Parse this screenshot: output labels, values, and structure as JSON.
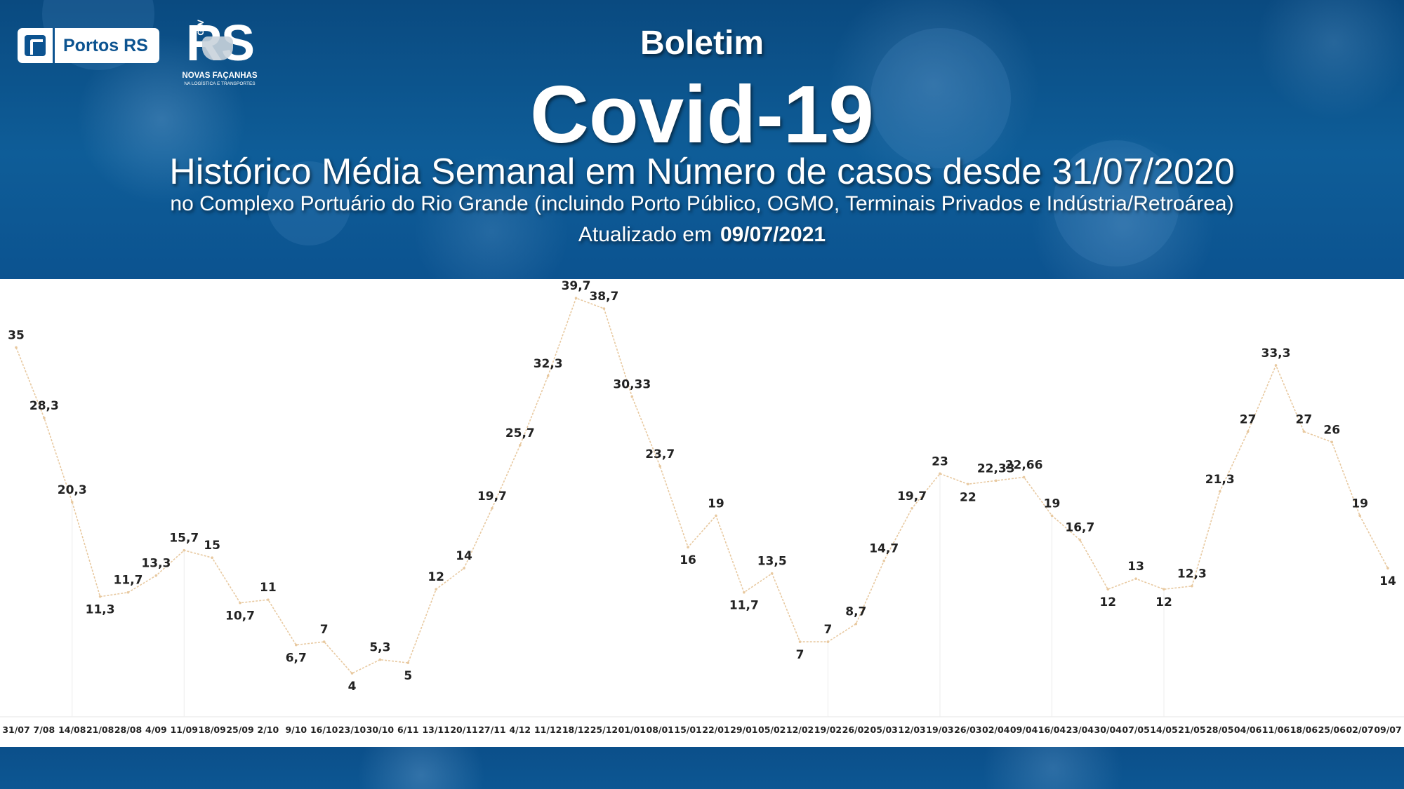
{
  "header": {
    "logo_portos_text": "Portos RS",
    "logo_rs_text": "RS",
    "logo_rs_gov": "GOV",
    "logo_rs_sub1": "NOVAS FAÇANHAS",
    "logo_rs_sub2": "NA LOGÍSTICA E TRANSPORTES",
    "title_small": "Boletim",
    "title_big": "Covid-19",
    "subtitle": "Histórico Média Semanal em Número de casos desde 31/07/2020",
    "description": "no Complexo Portuário do Rio Grande (incluindo Porto Público, OGMO, Terminais Privados e Indústria/Retroárea)",
    "updated_label": "Atualizado em",
    "updated_date": "09/07/2021"
  },
  "colors": {
    "banner": "#0c5390",
    "line": "#e8c9a0",
    "labels": "#222222"
  },
  "chart_data": {
    "type": "line",
    "title": "",
    "xlabel": "",
    "ylabel": "",
    "ylim": [
      0,
      42
    ],
    "grid": false,
    "legend": "none",
    "categories": [
      "31/07",
      "7/08",
      "14/08",
      "21/08",
      "28/08",
      "4/09",
      "11/09",
      "18/09",
      "25/09",
      "2/10",
      "9/10",
      "16/10",
      "23/10",
      "30/10",
      "6/11",
      "13/11",
      "20/11",
      "27/11",
      "4/12",
      "11/12",
      "18/12",
      "25/12",
      "01/01",
      "08/01",
      "15/01",
      "22/01",
      "29/01",
      "05/02",
      "12/02",
      "19/02",
      "26/02",
      "05/03",
      "12/03",
      "19/03",
      "26/03",
      "02/04",
      "09/04",
      "16/04",
      "23/04",
      "30/04",
      "07/05",
      "14/05",
      "21/05",
      "28/05",
      "04/06",
      "11/06",
      "18/06",
      "25/06",
      "02/07",
      "09/07"
    ],
    "labels": [
      "35",
      "28,3",
      "20,3",
      "11,3",
      "11,7",
      "13,3",
      "15,7",
      "15",
      "10,7",
      "11",
      "6,7",
      "7",
      "4",
      "5,3",
      "5",
      "12",
      "14",
      "19,7",
      "25,7",
      "32,3",
      "39,7",
      "38,7",
      "30,33",
      "23,7",
      "16",
      "19",
      "11,7",
      "13,5",
      "7",
      "7",
      "8,7",
      "14,7",
      "19,7",
      "23",
      "22",
      "22,33",
      "22,66",
      "19",
      "16,7",
      "12",
      "13",
      "12",
      "12,3",
      "21,3",
      "27",
      "33,3",
      "27",
      "26",
      "19",
      "14"
    ],
    "values": [
      35,
      28.3,
      20.3,
      11.3,
      11.7,
      13.3,
      15.7,
      15,
      10.7,
      11,
      6.7,
      7,
      4,
      5.3,
      5,
      12,
      14,
      19.7,
      25.7,
      32.3,
      39.7,
      38.7,
      30.33,
      23.7,
      16,
      19,
      11.7,
      13.5,
      7,
      7,
      8.7,
      14.7,
      19.7,
      23,
      22,
      22.33,
      22.66,
      19,
      16.7,
      12,
      13,
      12,
      12.3,
      21.3,
      27,
      33.3,
      27,
      26,
      19,
      14
    ]
  }
}
